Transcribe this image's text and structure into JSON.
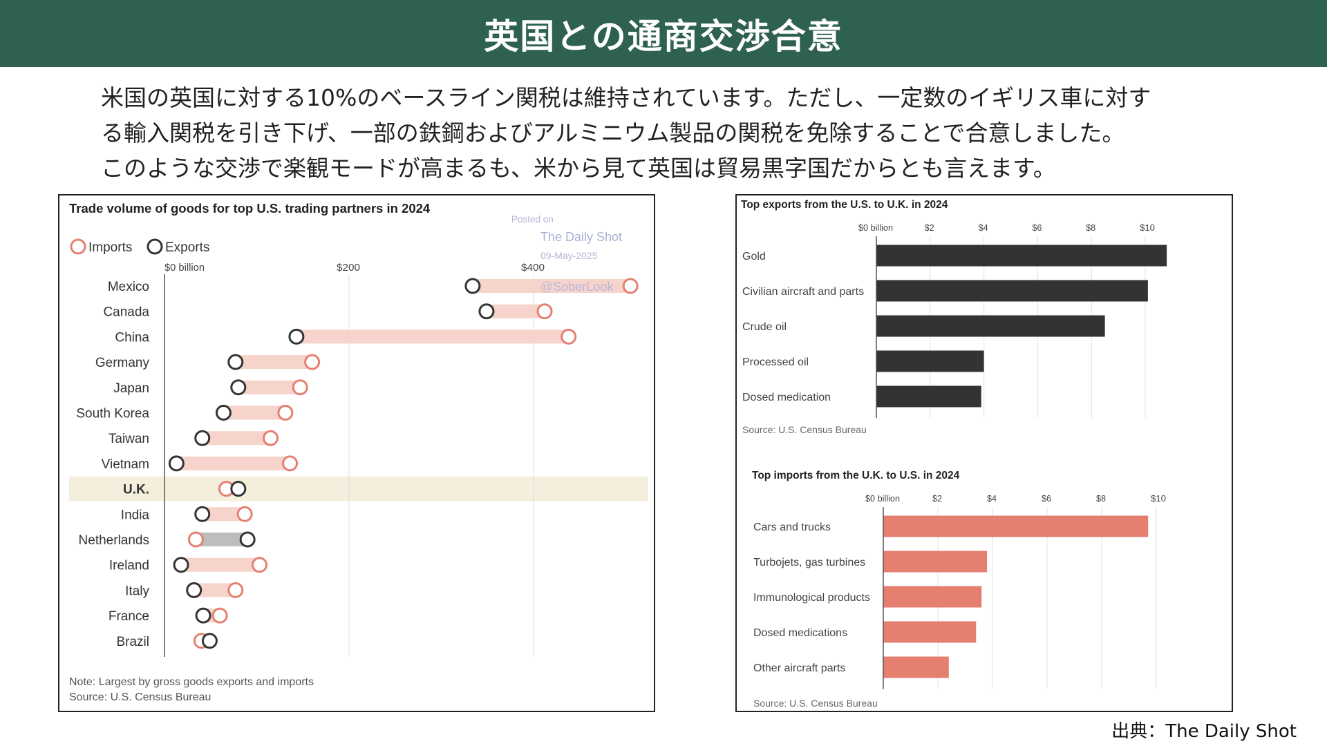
{
  "header": {
    "title": "英国との通商交渉合意"
  },
  "intro": {
    "lines": [
      "米国の英国に対する10%のベースライン関税は維持されています。ただし、一定数のイギリス車に対す",
      "る輸入関税を引き下げ、一部の鉄鋼およびアルミニウム製品の関税を免除することで合意しました。",
      "このような交渉で楽観モードが高まるも、米から見て英国は貿易黒字国だからとも言えます。"
    ]
  },
  "colors": {
    "header_bg": "#2e6150",
    "imports": "#e57f70",
    "exports": "#333333",
    "range": "#f6d3cb",
    "surplus_range": "#bdbdbd",
    "highlight": "#f3efdc",
    "uk_bars": "#333333"
  },
  "chart_data": [
    {
      "type": "dumbbell",
      "title": "Trade volume of goods for top U.S. trading partners in 2024",
      "legend": [
        "Imports",
        "Exports"
      ],
      "legend_placement": "top-left",
      "x_ticks": [
        "$0 billion",
        "$200",
        "$400"
      ],
      "xlim": [
        0,
        520
      ],
      "categories": [
        "Mexico",
        "Canada",
        "China",
        "Germany",
        "Japan",
        "South Korea",
        "Taiwan",
        "Vietnam",
        "U.K.",
        "India",
        "Netherlands",
        "Ireland",
        "Italy",
        "France",
        "Brazil"
      ],
      "series": [
        {
          "name": "Imports",
          "values": [
            505,
            412,
            438,
            160,
            147,
            131,
            115,
            136,
            67,
            87,
            34,
            103,
            77,
            60,
            40
          ]
        },
        {
          "name": "Exports",
          "values": [
            334,
            349,
            143,
            77,
            80,
            64,
            41,
            13,
            80,
            41,
            90,
            18,
            32,
            42,
            49
          ]
        }
      ],
      "highlight": "U.K.",
      "watermark": [
        "Posted on",
        "The Daily Shot",
        "09-May-2025",
        "@SoberLook"
      ],
      "notes": [
        "Note: Largest by gross goods exports and imports",
        "Source: U.S. Census Bureau"
      ]
    },
    {
      "type": "bar",
      "orientation": "horizontal",
      "title": "Top exports from the U.S. to U.K. in 2024",
      "x_ticks": [
        "$0 billion",
        "$2",
        "$4",
        "$6",
        "$8",
        "$10"
      ],
      "xlim": [
        0,
        10.8
      ],
      "categories": [
        "Gold",
        "Civilian aircraft and parts",
        "Crude oil",
        "Processed oil",
        "Dosed medication"
      ],
      "values": [
        10.8,
        10.1,
        8.5,
        4.0,
        3.9
      ],
      "source": "Source: U.S. Census Bureau"
    },
    {
      "type": "bar",
      "orientation": "horizontal",
      "title": "Top imports from the U.K. to U.S. in 2024",
      "x_ticks": [
        "$0 billion",
        "$2",
        "$4",
        "$6",
        "$8",
        "$10"
      ],
      "xlim": [
        0,
        10.2
      ],
      "categories": [
        "Cars and trucks",
        "Turbojets, gas turbines",
        "Immunological products",
        "Dosed medications",
        "Other aircraft parts"
      ],
      "values": [
        9.7,
        3.8,
        3.6,
        3.4,
        2.4
      ],
      "source": "Source: U.S. Census Bureau"
    }
  ],
  "footer": {
    "credit": "出典：The Daily Shot"
  }
}
